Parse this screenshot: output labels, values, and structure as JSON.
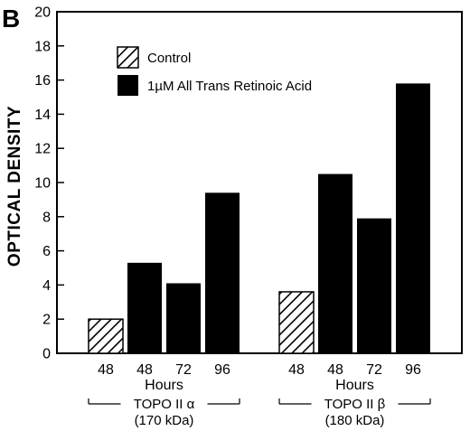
{
  "panel_label": "B",
  "chart_data": {
    "type": "bar",
    "ylabel": "OPTICAL DENSITY",
    "ylim": [
      0,
      20
    ],
    "yticks": [
      0,
      2,
      4,
      6,
      8,
      10,
      12,
      14,
      16,
      18,
      20
    ],
    "legend": {
      "placement": "top-left",
      "entries": [
        {
          "label": "Control",
          "pattern": "hatched"
        },
        {
          "label": "1µM All Trans Retinoic Acid",
          "color": "#000000"
        }
      ]
    },
    "groups": [
      {
        "name": "TOPO II α",
        "subtitle": "(170 kDa)",
        "xlabel": "Hours",
        "bars": [
          {
            "category": "48",
            "series": "Control",
            "value": 2.0
          },
          {
            "category": "48",
            "series": "1µM All Trans Retinoic Acid",
            "value": 5.3
          },
          {
            "category": "72",
            "series": "1µM All Trans Retinoic Acid",
            "value": 4.1
          },
          {
            "category": "96",
            "series": "1µM All Trans Retinoic Acid",
            "value": 9.4
          }
        ]
      },
      {
        "name": "TOPO II β",
        "subtitle": "(180 kDa)",
        "xlabel": "Hours",
        "bars": [
          {
            "category": "48",
            "series": "Control",
            "value": 3.6
          },
          {
            "category": "48",
            "series": "1µM All Trans Retinoic Acid",
            "value": 10.5
          },
          {
            "category": "72",
            "series": "1µM All Trans Retinoic Acid",
            "value": 7.9
          },
          {
            "category": "96",
            "series": "1µM All Trans Retinoic Acid",
            "value": 15.8
          }
        ]
      }
    ]
  }
}
